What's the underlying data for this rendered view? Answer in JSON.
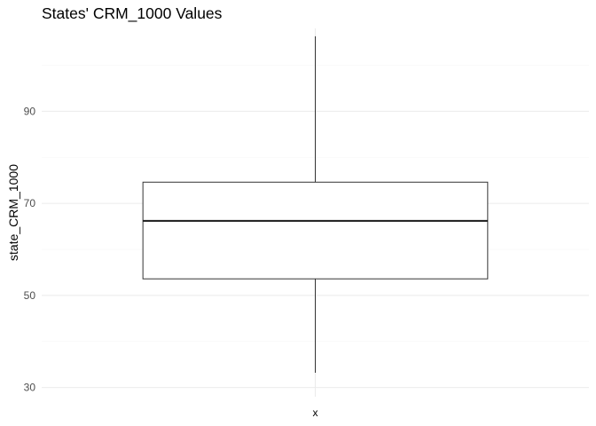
{
  "chart_data": {
    "type": "boxplot",
    "title": "States' CRM_1000 Values",
    "xlabel": "",
    "ylabel": "state_CRM_1000",
    "categories": [
      "x"
    ],
    "boxes": [
      {
        "category": "x",
        "min": 33.2,
        "q1": 53.6,
        "median": 66.2,
        "q3": 74.6,
        "max": 106.3
      }
    ],
    "ylim": [
      28,
      108
    ],
    "y_ticks": [
      30,
      50,
      70,
      90
    ],
    "y_minor_ticks": [
      40,
      60,
      80,
      100
    ],
    "grid": true,
    "legend": "none",
    "colors": {
      "box_fill": "#ffffff",
      "box_stroke": "#333333",
      "median_stroke": "#1a1a1a",
      "grid_major": "#ebebeb",
      "grid_minor": "#f5f5f5"
    }
  }
}
